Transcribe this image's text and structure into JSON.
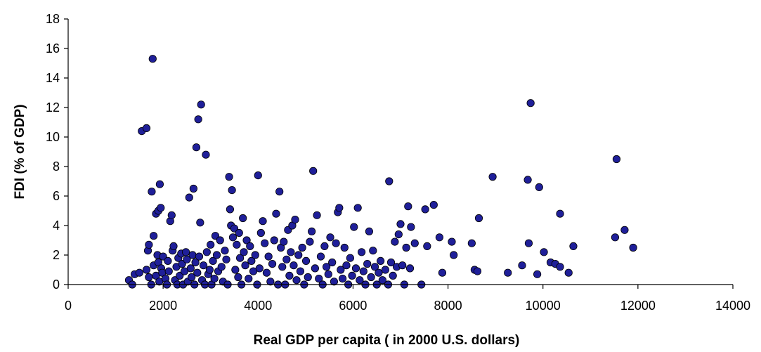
{
  "chart_data": {
    "type": "scatter",
    "title": "",
    "xlabel": "Real GDP per capita ( in 2000 U.S. dollars)",
    "ylabel": "FDI (% of GDP)",
    "xlim": [
      0,
      14000
    ],
    "ylim": [
      0,
      18
    ],
    "x_ticks": [
      0,
      2000,
      4000,
      6000,
      8000,
      10000,
      12000,
      14000
    ],
    "y_ticks": [
      0,
      2,
      4,
      6,
      8,
      10,
      12,
      14,
      16,
      18
    ],
    "grid": false,
    "legend": "none",
    "marker_color": "#1f1f99",
    "series": [
      {
        "points": [
          [
            1280,
            0.3
          ],
          [
            1350,
            0.0
          ],
          [
            1400,
            0.7
          ],
          [
            1500,
            0.8
          ],
          [
            1550,
            10.4
          ],
          [
            1650,
            10.6
          ],
          [
            1680,
            2.3
          ],
          [
            1700,
            2.7
          ],
          [
            1760,
            6.3
          ],
          [
            1780,
            15.3
          ],
          [
            1800,
            3.3
          ],
          [
            1850,
            4.8
          ],
          [
            1900,
            5.0
          ],
          [
            1930,
            6.8
          ],
          [
            1950,
            5.2
          ],
          [
            1650,
            1.0
          ],
          [
            1700,
            0.5
          ],
          [
            1750,
            0.0
          ],
          [
            1800,
            1.3
          ],
          [
            1850,
            0.6
          ],
          [
            1880,
            2.0
          ],
          [
            1900,
            1.5
          ],
          [
            1920,
            0.2
          ],
          [
            1960,
            1.1
          ],
          [
            1980,
            0.8
          ],
          [
            2000,
            1.9
          ],
          [
            2050,
            0.4
          ],
          [
            2080,
            0.0
          ],
          [
            2100,
            1.6
          ],
          [
            2120,
            0.9
          ],
          [
            2150,
            4.3
          ],
          [
            2180,
            4.7
          ],
          [
            2200,
            2.3
          ],
          [
            2220,
            2.6
          ],
          [
            2250,
            0.3
          ],
          [
            2280,
            1.2
          ],
          [
            2300,
            0.0
          ],
          [
            2320,
            1.8
          ],
          [
            2350,
            0.6
          ],
          [
            2380,
            2.1
          ],
          [
            2400,
            1.4
          ],
          [
            2420,
            0.0
          ],
          [
            2450,
            0.9
          ],
          [
            2480,
            2.2
          ],
          [
            2500,
            1.7
          ],
          [
            2520,
            0.2
          ],
          [
            2550,
            5.9
          ],
          [
            2580,
            1.1
          ],
          [
            2600,
            0.5
          ],
          [
            2620,
            2.0
          ],
          [
            2640,
            6.5
          ],
          [
            2660,
            0.0
          ],
          [
            2680,
            1.5
          ],
          [
            2700,
            9.3
          ],
          [
            2720,
            0.8
          ],
          [
            2740,
            11.2
          ],
          [
            2760,
            1.9
          ],
          [
            2780,
            4.2
          ],
          [
            2800,
            12.2
          ],
          [
            2820,
            0.3
          ],
          [
            2850,
            1.3
          ],
          [
            2880,
            0.0
          ],
          [
            2900,
            8.8
          ],
          [
            2920,
            2.2
          ],
          [
            2950,
            0.7
          ],
          [
            2980,
            1.0
          ],
          [
            3000,
            2.7
          ],
          [
            3020,
            0.0
          ],
          [
            3050,
            1.6
          ],
          [
            3080,
            0.4
          ],
          [
            3100,
            3.3
          ],
          [
            3130,
            2.0
          ],
          [
            3160,
            0.9
          ],
          [
            3200,
            3.0
          ],
          [
            3230,
            1.2
          ],
          [
            3260,
            0.2
          ],
          [
            3300,
            2.3
          ],
          [
            3330,
            1.7
          ],
          [
            3360,
            0.0
          ],
          [
            3390,
            7.3
          ],
          [
            3410,
            5.1
          ],
          [
            3430,
            4.0
          ],
          [
            3450,
            6.4
          ],
          [
            3470,
            3.2
          ],
          [
            3500,
            3.8
          ],
          [
            3520,
            1.0
          ],
          [
            3550,
            2.7
          ],
          [
            3580,
            0.5
          ],
          [
            3600,
            3.5
          ],
          [
            3620,
            1.8
          ],
          [
            3650,
            0.0
          ],
          [
            3680,
            4.5
          ],
          [
            3700,
            2.2
          ],
          [
            3730,
            1.3
          ],
          [
            3760,
            3.0
          ],
          [
            3800,
            0.4
          ],
          [
            3830,
            2.6
          ],
          [
            3860,
            1.6
          ],
          [
            3900,
            0.9
          ],
          [
            3940,
            2.0
          ],
          [
            3980,
            0.0
          ],
          [
            4000,
            7.4
          ],
          [
            4030,
            1.1
          ],
          [
            4060,
            3.5
          ],
          [
            4100,
            4.3
          ],
          [
            4140,
            2.8
          ],
          [
            4180,
            0.8
          ],
          [
            4220,
            1.9
          ],
          [
            4260,
            0.2
          ],
          [
            4300,
            1.4
          ],
          [
            4340,
            3.0
          ],
          [
            4380,
            4.8
          ],
          [
            4420,
            0.0
          ],
          [
            4450,
            6.3
          ],
          [
            4480,
            2.5
          ],
          [
            4510,
            1.2
          ],
          [
            4540,
            2.9
          ],
          [
            4570,
            0.0
          ],
          [
            4600,
            1.7
          ],
          [
            4630,
            3.7
          ],
          [
            4660,
            0.6
          ],
          [
            4690,
            2.2
          ],
          [
            4720,
            4.0
          ],
          [
            4750,
            1.3
          ],
          [
            4780,
            4.4
          ],
          [
            4810,
            0.3
          ],
          [
            4850,
            2.0
          ],
          [
            4890,
            0.9
          ],
          [
            4930,
            2.5
          ],
          [
            4970,
            0.0
          ],
          [
            5010,
            1.6
          ],
          [
            5050,
            0.5
          ],
          [
            5090,
            2.9
          ],
          [
            5130,
            3.6
          ],
          [
            5160,
            7.7
          ],
          [
            5200,
            1.1
          ],
          [
            5240,
            4.7
          ],
          [
            5280,
            0.4
          ],
          [
            5320,
            1.9
          ],
          [
            5360,
            0.0
          ],
          [
            5400,
            2.6
          ],
          [
            5440,
            1.2
          ],
          [
            5480,
            0.7
          ],
          [
            5520,
            3.2
          ],
          [
            5560,
            1.5
          ],
          [
            5600,
            0.2
          ],
          [
            5640,
            2.8
          ],
          [
            5680,
            4.9
          ],
          [
            5710,
            5.2
          ],
          [
            5740,
            1.0
          ],
          [
            5780,
            0.4
          ],
          [
            5820,
            2.5
          ],
          [
            5860,
            1.3
          ],
          [
            5900,
            0.0
          ],
          [
            5940,
            1.8
          ],
          [
            5980,
            0.6
          ],
          [
            6020,
            3.9
          ],
          [
            6060,
            1.1
          ],
          [
            6100,
            5.2
          ],
          [
            6140,
            0.3
          ],
          [
            6180,
            2.2
          ],
          [
            6220,
            0.9
          ],
          [
            6260,
            0.0
          ],
          [
            6300,
            1.4
          ],
          [
            6340,
            3.6
          ],
          [
            6380,
            0.5
          ],
          [
            6420,
            2.3
          ],
          [
            6460,
            1.2
          ],
          [
            6500,
            0.0
          ],
          [
            6540,
            0.8
          ],
          [
            6580,
            1.6
          ],
          [
            6620,
            0.3
          ],
          [
            6680,
            1.0
          ],
          [
            6740,
            0.0
          ],
          [
            6760,
            7.0
          ],
          [
            6800,
            1.5
          ],
          [
            6840,
            0.6
          ],
          [
            6880,
            2.9
          ],
          [
            6920,
            1.2
          ],
          [
            6960,
            3.4
          ],
          [
            7000,
            4.1
          ],
          [
            7040,
            1.3
          ],
          [
            7080,
            0.0
          ],
          [
            7120,
            2.5
          ],
          [
            7160,
            5.3
          ],
          [
            7200,
            1.1
          ],
          [
            7220,
            3.9
          ],
          [
            7300,
            2.8
          ],
          [
            7440,
            0.0
          ],
          [
            7520,
            5.1
          ],
          [
            7560,
            2.6
          ],
          [
            7700,
            5.4
          ],
          [
            7820,
            3.2
          ],
          [
            7880,
            0.8
          ],
          [
            8080,
            2.9
          ],
          [
            8120,
            2.0
          ],
          [
            8500,
            2.8
          ],
          [
            8560,
            1.0
          ],
          [
            8620,
            0.9
          ],
          [
            8650,
            4.5
          ],
          [
            8940,
            7.3
          ],
          [
            9260,
            0.8
          ],
          [
            9560,
            1.3
          ],
          [
            9680,
            7.1
          ],
          [
            9700,
            2.8
          ],
          [
            9740,
            12.3
          ],
          [
            9880,
            0.7
          ],
          [
            9920,
            6.6
          ],
          [
            10020,
            2.2
          ],
          [
            10160,
            1.5
          ],
          [
            10260,
            1.4
          ],
          [
            10360,
            4.8
          ],
          [
            10360,
            1.2
          ],
          [
            10540,
            0.8
          ],
          [
            10640,
            2.6
          ],
          [
            11520,
            3.2
          ],
          [
            11550,
            8.5
          ],
          [
            11720,
            3.7
          ],
          [
            11900,
            2.5
          ]
        ]
      }
    ]
  }
}
